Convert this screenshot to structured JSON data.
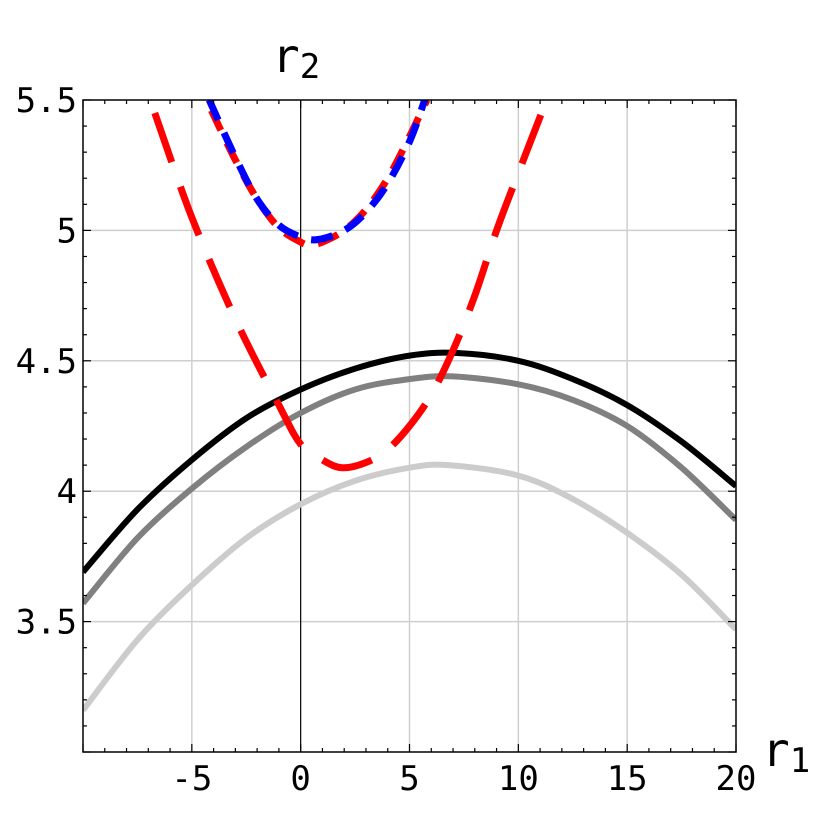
{
  "chart_data": {
    "type": "line",
    "title": "",
    "xlabel": {
      "base": "r",
      "sub": "1"
    },
    "ylabel": {
      "base": "r",
      "sub": "2"
    },
    "xlim": [
      -10,
      20
    ],
    "ylim": [
      3,
      5.5
    ],
    "x_ticks": [
      -5,
      0,
      5,
      10,
      15,
      20
    ],
    "x_tick_labels": [
      "-5",
      "0",
      "5",
      "10",
      "15",
      "20"
    ],
    "y_ticks": [
      3.5,
      4,
      4.5,
      5,
      5.5
    ],
    "y_tick_labels": [
      "3.5",
      "4",
      "4.5",
      "5",
      "5.5"
    ],
    "grid": true,
    "series": [
      {
        "color": "#000000",
        "style": "solid",
        "width": 6,
        "x": [
          -10,
          -7.5,
          -5,
          -2.5,
          0,
          2.5,
          5,
          7.2,
          10,
          12.5,
          15,
          17.5,
          20
        ],
        "y": [
          3.69,
          3.93,
          4.12,
          4.28,
          4.39,
          4.47,
          4.52,
          4.53,
          4.5,
          4.43,
          4.33,
          4.19,
          4.02
        ]
      },
      {
        "color": "#808080",
        "style": "solid",
        "width": 6,
        "x": [
          -10,
          -7.5,
          -5,
          -2.5,
          0,
          2.5,
          5,
          7.0,
          10,
          12.5,
          15,
          17.5,
          20
        ],
        "y": [
          3.57,
          3.82,
          4.01,
          4.17,
          4.3,
          4.39,
          4.43,
          4.44,
          4.41,
          4.35,
          4.25,
          4.09,
          3.89
        ]
      },
      {
        "color": "#cccccc",
        "style": "solid",
        "width": 6,
        "x": [
          -10,
          -7.5,
          -5,
          -2.5,
          0,
          2.5,
          5,
          6.8,
          10,
          12.5,
          15,
          17.5,
          20
        ],
        "y": [
          3.16,
          3.43,
          3.64,
          3.82,
          3.95,
          4.04,
          4.09,
          4.1,
          4.06,
          3.97,
          3.84,
          3.68,
          3.47
        ]
      },
      {
        "color": "#ff0000",
        "style": "longdash",
        "width": 7,
        "x": [
          -6.7,
          -5,
          -3,
          -1,
          0,
          1,
          1.9,
          3,
          4,
          5,
          6,
          7,
          8,
          9,
          10,
          11.3
        ],
        "y": [
          5.45,
          5.05,
          4.66,
          4.33,
          4.18,
          4.12,
          4.09,
          4.11,
          4.16,
          4.25,
          4.37,
          4.54,
          4.75,
          5.0,
          5.22,
          5.5
        ]
      },
      {
        "color": "#ff0000",
        "style": "dash",
        "width": 7,
        "x": [
          -4.1,
          -3,
          -2,
          -1,
          0,
          0.4,
          1,
          2,
          3,
          4,
          5,
          5.8
        ],
        "y": [
          5.46,
          5.27,
          5.12,
          5.01,
          4.955,
          4.945,
          4.955,
          5.0,
          5.08,
          5.2,
          5.36,
          5.5
        ]
      },
      {
        "color": "#0000ff",
        "style": "dash",
        "width": 7,
        "x": [
          -4.2,
          -3,
          -2,
          -1,
          0,
          0.8,
          2,
          3,
          4,
          5,
          5.7
        ],
        "y": [
          5.5,
          5.28,
          5.12,
          5.02,
          4.975,
          4.965,
          5.0,
          5.07,
          5.18,
          5.34,
          5.5
        ]
      }
    ]
  }
}
